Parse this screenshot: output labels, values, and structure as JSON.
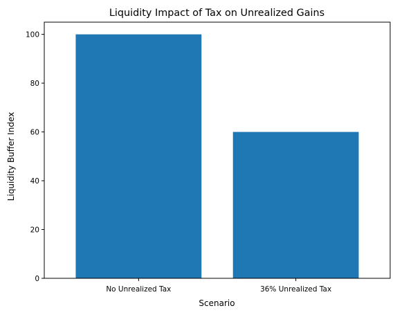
{
  "chart_data": {
    "type": "bar",
    "title": "Liquidity Impact of Tax on Unrealized Gains",
    "xlabel": "Scenario",
    "ylabel": "Liquidity Buffer Index",
    "categories": [
      "No Unrealized Tax",
      "36% Unrealized Tax"
    ],
    "values": [
      100,
      60
    ],
    "ylim": [
      0,
      105
    ],
    "yticks": [
      0,
      20,
      40,
      60,
      80,
      100
    ],
    "grid": false,
    "bar_color": "#1f77b4"
  }
}
